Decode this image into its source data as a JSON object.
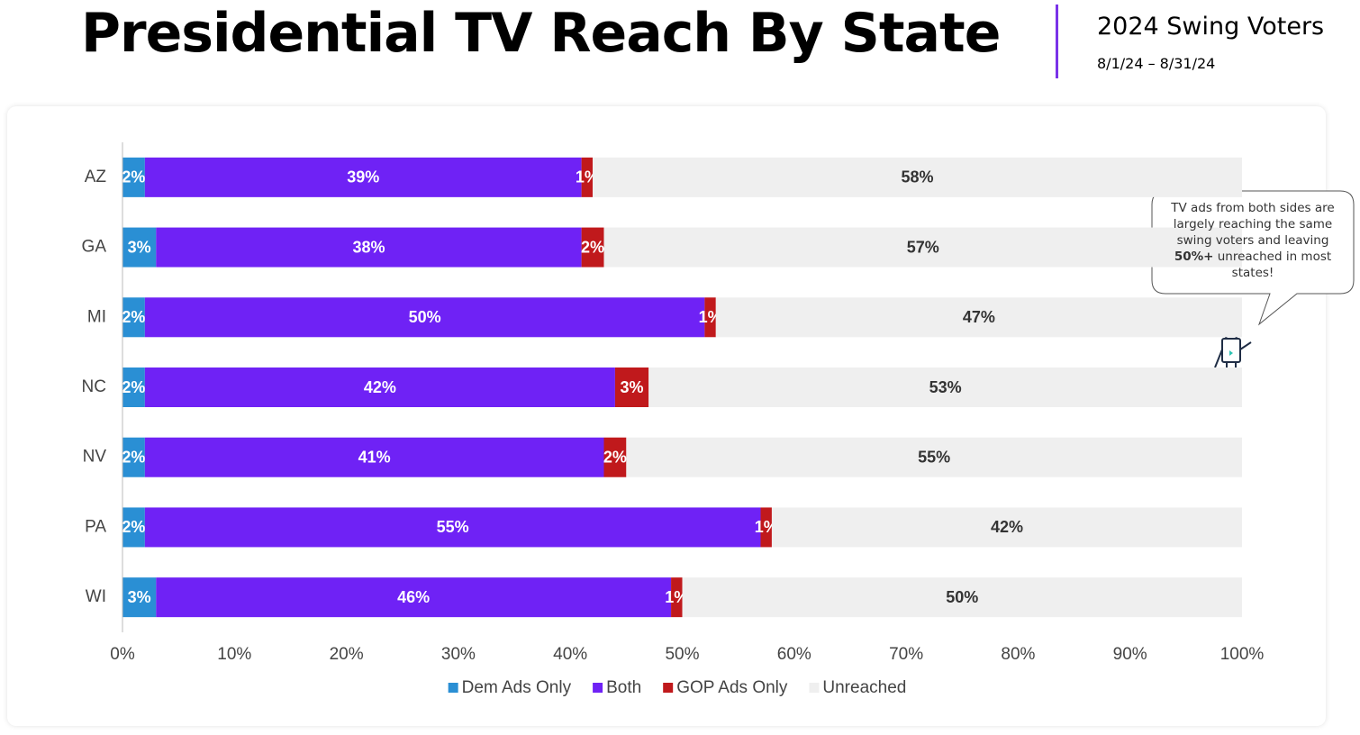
{
  "header": {
    "title": "Presidential TV Reach By State",
    "subtitle": "2024 Swing Voters",
    "date_range": "8/1/24 – 8/31/24"
  },
  "chart_data": {
    "type": "stacked_bar_horizontal",
    "categories": [
      "AZ",
      "GA",
      "MI",
      "NC",
      "NV",
      "PA",
      "WI"
    ],
    "series": [
      {
        "name": "Dem Ads Only",
        "color": "#2a8fd4",
        "label_color": "#ffffff",
        "values": [
          2,
          3,
          2,
          2,
          2,
          2,
          3
        ],
        "value_labels": [
          "2%",
          "3%",
          "2%",
          "2%",
          "2%",
          "2%",
          "3%"
        ]
      },
      {
        "name": "Both",
        "color": "#6f22f5",
        "label_color": "#ffffff",
        "values": [
          39,
          38,
          50,
          42,
          41,
          55,
          46
        ],
        "value_labels": [
          "39%",
          "38%",
          "50%",
          "42%",
          "41%",
          "55%",
          "46%"
        ]
      },
      {
        "name": "GOP Ads Only",
        "color": "#c0191c",
        "label_color": "#ffffff",
        "values": [
          1,
          2,
          1,
          3,
          2,
          1,
          1
        ],
        "value_labels": [
          "1%",
          "2%",
          "1%",
          "3%",
          "2%",
          "1%",
          "1%"
        ]
      },
      {
        "name": "Unreached",
        "color": "#efefef",
        "label_color": "#333333",
        "values": [
          58,
          57,
          47,
          53,
          55,
          42,
          50
        ],
        "value_labels": [
          "58%",
          "57%",
          "47%",
          "53%",
          "55%",
          "42%",
          "50%"
        ]
      }
    ],
    "xlim": [
      0,
      100
    ],
    "xticks": [
      {
        "value": 0,
        "label": "0%"
      },
      {
        "value": 10,
        "label": "10%"
      },
      {
        "value": 20,
        "label": "20%"
      },
      {
        "value": 30,
        "label": "30%"
      },
      {
        "value": 40,
        "label": "40%"
      },
      {
        "value": 50,
        "label": "50%"
      },
      {
        "value": 60,
        "label": "60%"
      },
      {
        "value": 70,
        "label": "70%"
      },
      {
        "value": 80,
        "label": "80%"
      },
      {
        "value": 90,
        "label": "90%"
      },
      {
        "value": 100,
        "label": "100%"
      }
    ],
    "grid": false,
    "legend": "bottom",
    "annotation": [
      "TV ads from both sides are largely reaching the same swing voters and leaving",
      "50%+",
      "unreached in most states!"
    ]
  }
}
